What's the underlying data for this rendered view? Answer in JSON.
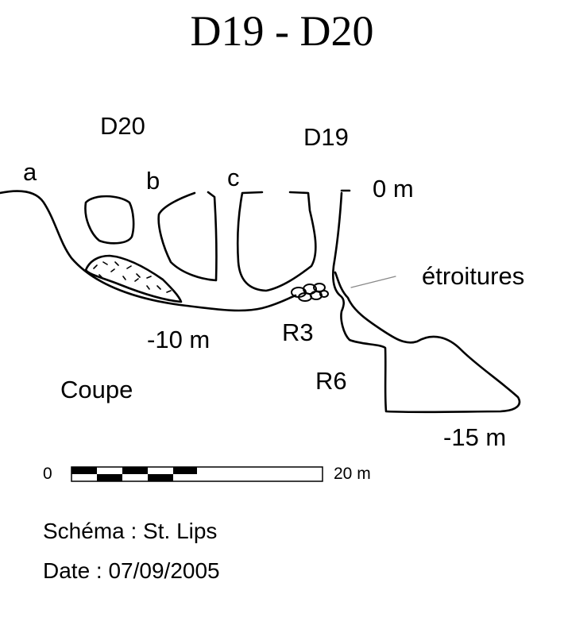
{
  "title": "D19 - D20",
  "entrances": {
    "d20": "D20",
    "d19": "D19"
  },
  "openings": {
    "a": "a",
    "b": "b",
    "c": "c"
  },
  "depths": {
    "top": "0 m",
    "mid": "-10 m",
    "bottom": "-15 m"
  },
  "annotations": {
    "narrowings": "étroitures",
    "r3": "R3",
    "r6": "R6",
    "section": "Coupe"
  },
  "scale": {
    "start_label": "0",
    "end_label": "20 m"
  },
  "credits": {
    "schema": "Schéma : St. Lips",
    "date": "Date : 07/09/2005"
  }
}
